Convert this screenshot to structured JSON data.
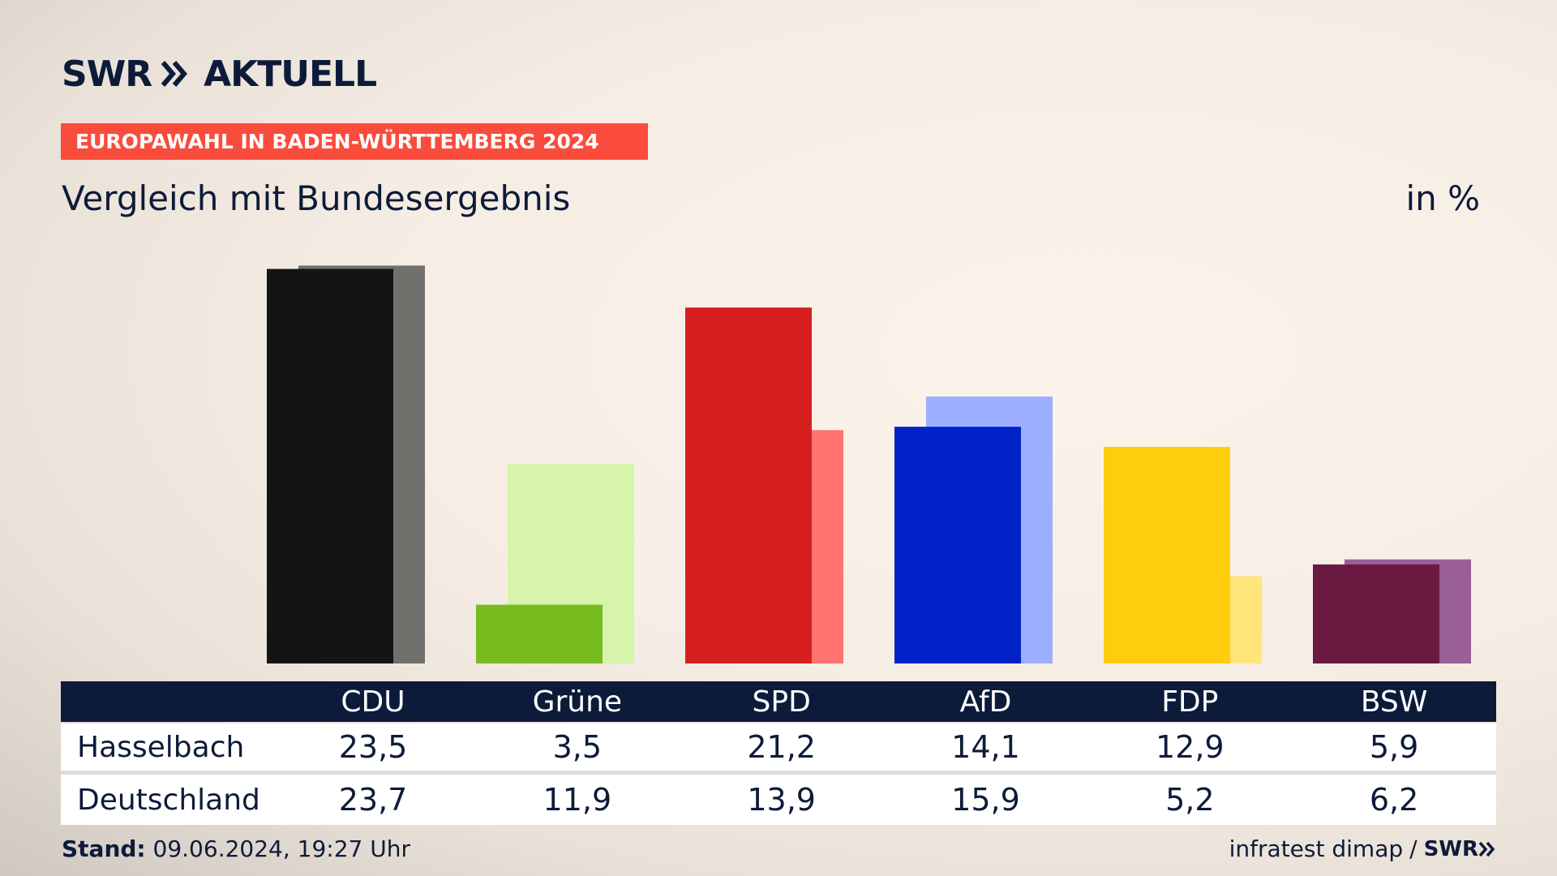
{
  "brand": {
    "name": "SWR",
    "program": "AKTUELL"
  },
  "banner": "EUROPAWAHL IN BADEN-WÜRTTEMBERG 2024",
  "subtitle": "Vergleich mit Bundesergebnis",
  "unit": "in %",
  "chart_data": {
    "type": "bar",
    "categories": [
      "CDU",
      "Grüne",
      "SPD",
      "AfD",
      "FDP",
      "BSW"
    ],
    "series": [
      {
        "name": "Hasselbach",
        "values": [
          23.5,
          3.5,
          21.2,
          14.1,
          12.9,
          5.9
        ]
      },
      {
        "name": "Deutschland",
        "values": [
          23.7,
          11.9,
          13.9,
          15.9,
          5.2,
          6.2
        ]
      }
    ],
    "colors": {
      "primary": [
        "#141414",
        "#78bb1f",
        "#d71f1f",
        "#0022c7",
        "#fecd0e",
        "#6a1a40"
      ],
      "secondary": [
        "#72706d",
        "#d6f4aa",
        "#ff7370",
        "#9baeff",
        "#ffe47a",
        "#9a5f98"
      ]
    },
    "ylim": [
      0,
      24
    ],
    "grid": false
  },
  "table": {
    "headers": [
      "CDU",
      "Grüne",
      "SPD",
      "AfD",
      "FDP",
      "BSW"
    ],
    "rows": [
      {
        "label": "Hasselbach",
        "values": [
          "23,5",
          "3,5",
          "21,2",
          "14,1",
          "12,9",
          "5,9"
        ]
      },
      {
        "label": "Deutschland",
        "values": [
          "23,7",
          "11,9",
          "13,9",
          "15,9",
          "5,2",
          "6,2"
        ]
      }
    ]
  },
  "footer": {
    "stand_label": "Stand:",
    "stand_value": "09.06.2024, 19:27 Uhr",
    "source": "infratest dimap",
    "separator": "/",
    "source_brand": "SWR"
  },
  "theme": {
    "navy": "#0d1b3a",
    "banner_red": "#fa4c3c"
  }
}
